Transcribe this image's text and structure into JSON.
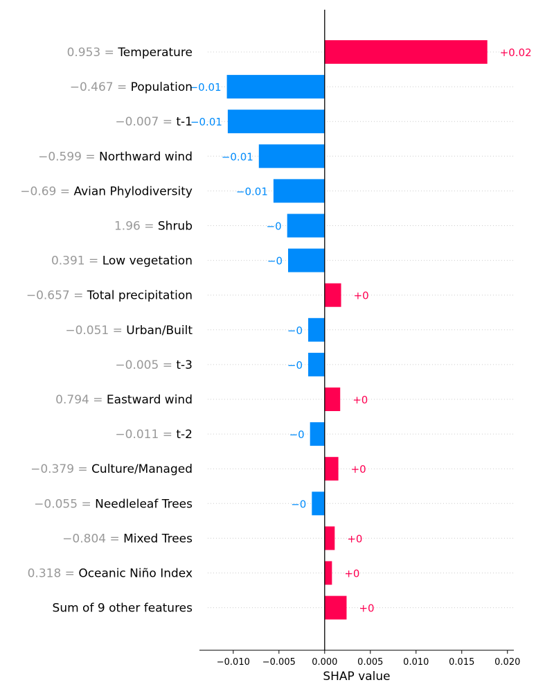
{
  "chart_data": {
    "type": "bar",
    "orientation": "horizontal",
    "xlabel": "SHAP value",
    "xlim": [
      -0.0137,
      0.0207
    ],
    "xticks": [
      -0.01,
      -0.005,
      0.0,
      0.005,
      0.01,
      0.015,
      0.02
    ],
    "xtick_labels": [
      "−0.010",
      "−0.005",
      "0.000",
      "0.005",
      "0.010",
      "0.015",
      "0.020"
    ],
    "grid": "dotted horizontal guide lines per row",
    "colors": {
      "positive": "#ff0051",
      "negative": "#008bfb",
      "feature_value": "#999999",
      "feature_name": "#000000"
    },
    "rows": [
      {
        "feature_value": "0.953",
        "feature": "Temperature",
        "value": 0.0178,
        "label": "+0.02"
      },
      {
        "feature_value": "−0.467",
        "feature": "Population",
        "value": -0.0107,
        "label": "−0.01"
      },
      {
        "feature_value": "−0.007",
        "feature": "t-1",
        "value": -0.0106,
        "label": "−0.01"
      },
      {
        "feature_value": "−0.599",
        "feature": "Northward wind",
        "value": -0.0072,
        "label": "−0.01"
      },
      {
        "feature_value": "−0.69",
        "feature": "Avian Phylodiversity",
        "value": -0.0056,
        "label": "−0.01"
      },
      {
        "feature_value": "1.96",
        "feature": "Shrub",
        "value": -0.0041,
        "label": "−0"
      },
      {
        "feature_value": "0.391",
        "feature": "Low vegetation",
        "value": -0.004,
        "label": "−0"
      },
      {
        "feature_value": "−0.657",
        "feature": "Total precipitation",
        "value": 0.0018,
        "label": "+0"
      },
      {
        "feature_value": "−0.051",
        "feature": "Urban/Built",
        "value": -0.0018,
        "label": "−0"
      },
      {
        "feature_value": "−0.005",
        "feature": "t-3",
        "value": -0.0018,
        "label": "−0"
      },
      {
        "feature_value": "0.794",
        "feature": "Eastward wind",
        "value": 0.0017,
        "label": "+0"
      },
      {
        "feature_value": "−0.011",
        "feature": "t-2",
        "value": -0.0016,
        "label": "−0"
      },
      {
        "feature_value": "−0.379",
        "feature": "Culture/Managed",
        "value": 0.0015,
        "label": "+0"
      },
      {
        "feature_value": "−0.055",
        "feature": "Needleleaf Trees",
        "value": -0.0014,
        "label": "−0"
      },
      {
        "feature_value": "−0.804",
        "feature": "Mixed Trees",
        "value": 0.0011,
        "label": "+0"
      },
      {
        "feature_value": "0.318",
        "feature": "Oceanic Niño Index",
        "value": 0.0008,
        "label": "+0"
      },
      {
        "feature_value": "",
        "feature": "Sum of 9 other features",
        "value": 0.0024,
        "label": "+0"
      }
    ]
  }
}
